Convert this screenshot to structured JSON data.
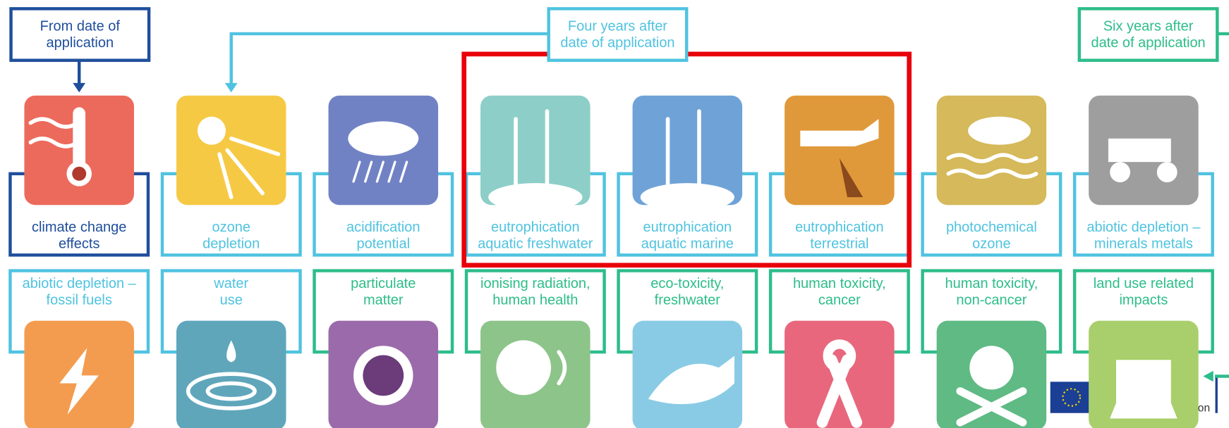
{
  "headers": [
    {
      "lines": [
        "From date of",
        "application"
      ]
    },
    {
      "lines": [
        "Four years after",
        "date of application"
      ]
    },
    {
      "lines": [
        "Six years after",
        "date of application"
      ]
    }
  ],
  "rows": [
    [
      {
        "lines": [
          "climate change",
          "effects"
        ]
      },
      {
        "lines": [
          "ozone",
          "depletion"
        ]
      },
      {
        "lines": [
          "acidification",
          "potential"
        ]
      },
      {
        "lines": [
          "eutrophication",
          "aquatic freshwater"
        ]
      },
      {
        "lines": [
          "eutrophication",
          "aquatic marine"
        ]
      },
      {
        "lines": [
          "eutrophication",
          "terrestrial"
        ]
      },
      {
        "lines": [
          "photochemical",
          "ozone"
        ]
      },
      {
        "lines": [
          "abiotic depletion –",
          "minerals metals"
        ]
      }
    ],
    [
      {
        "lines": [
          "abiotic depletion –",
          "fossil fuels"
        ]
      },
      {
        "lines": [
          "water",
          "use"
        ]
      },
      {
        "lines": [
          "particulate",
          "matter"
        ]
      },
      {
        "lines": [
          "ionising radiation,",
          "human health"
        ]
      },
      {
        "lines": [
          "eco-toxicity,",
          "freshwater"
        ]
      },
      {
        "lines": [
          "human toxicity,",
          "cancer"
        ]
      },
      {
        "lines": [
          "human toxicity,",
          "non-cancer"
        ]
      },
      {
        "lines": [
          "land use related",
          "impacts"
        ]
      }
    ]
  ],
  "logo_text": "on"
}
